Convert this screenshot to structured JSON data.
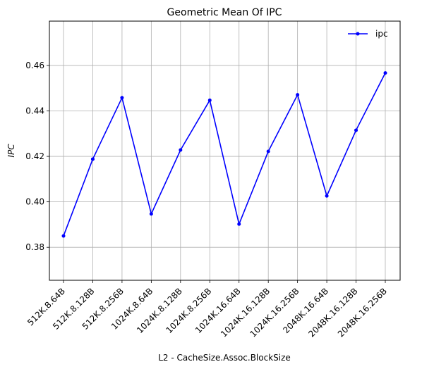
{
  "chart_data": {
    "type": "line",
    "title": "Geometric Mean Of IPC",
    "xlabel": "L2 - CacheSize.Assoc.BlockSize",
    "ylabel": "IPC",
    "categories": [
      "512K.8.64B",
      "512K.8.128B",
      "512K.8.256B",
      "1024K.8.64B",
      "1024K.8.128B",
      "1024K.8.256B",
      "1024K.16.64B",
      "1024K.16.128B",
      "1024K.16.256B",
      "2048K.16.64B",
      "2048K.16.128B",
      "2048K.16.256B"
    ],
    "series": [
      {
        "name": "ipc",
        "color": "#0000ff",
        "values": [
          0.385,
          0.4188,
          0.4458,
          0.3947,
          0.4228,
          0.4447,
          0.3902,
          0.4222,
          0.4471,
          0.4026,
          0.4315,
          0.4567
        ]
      }
    ],
    "ylim": [
      0.3655,
      0.4795
    ],
    "yticks": [
      0.38,
      0.4,
      0.42,
      0.44,
      0.46
    ],
    "ytick_labels": [
      "0.38",
      "0.40",
      "0.42",
      "0.44",
      "0.46"
    ],
    "grid": true,
    "legend": "top-right",
    "marker": "dot"
  }
}
